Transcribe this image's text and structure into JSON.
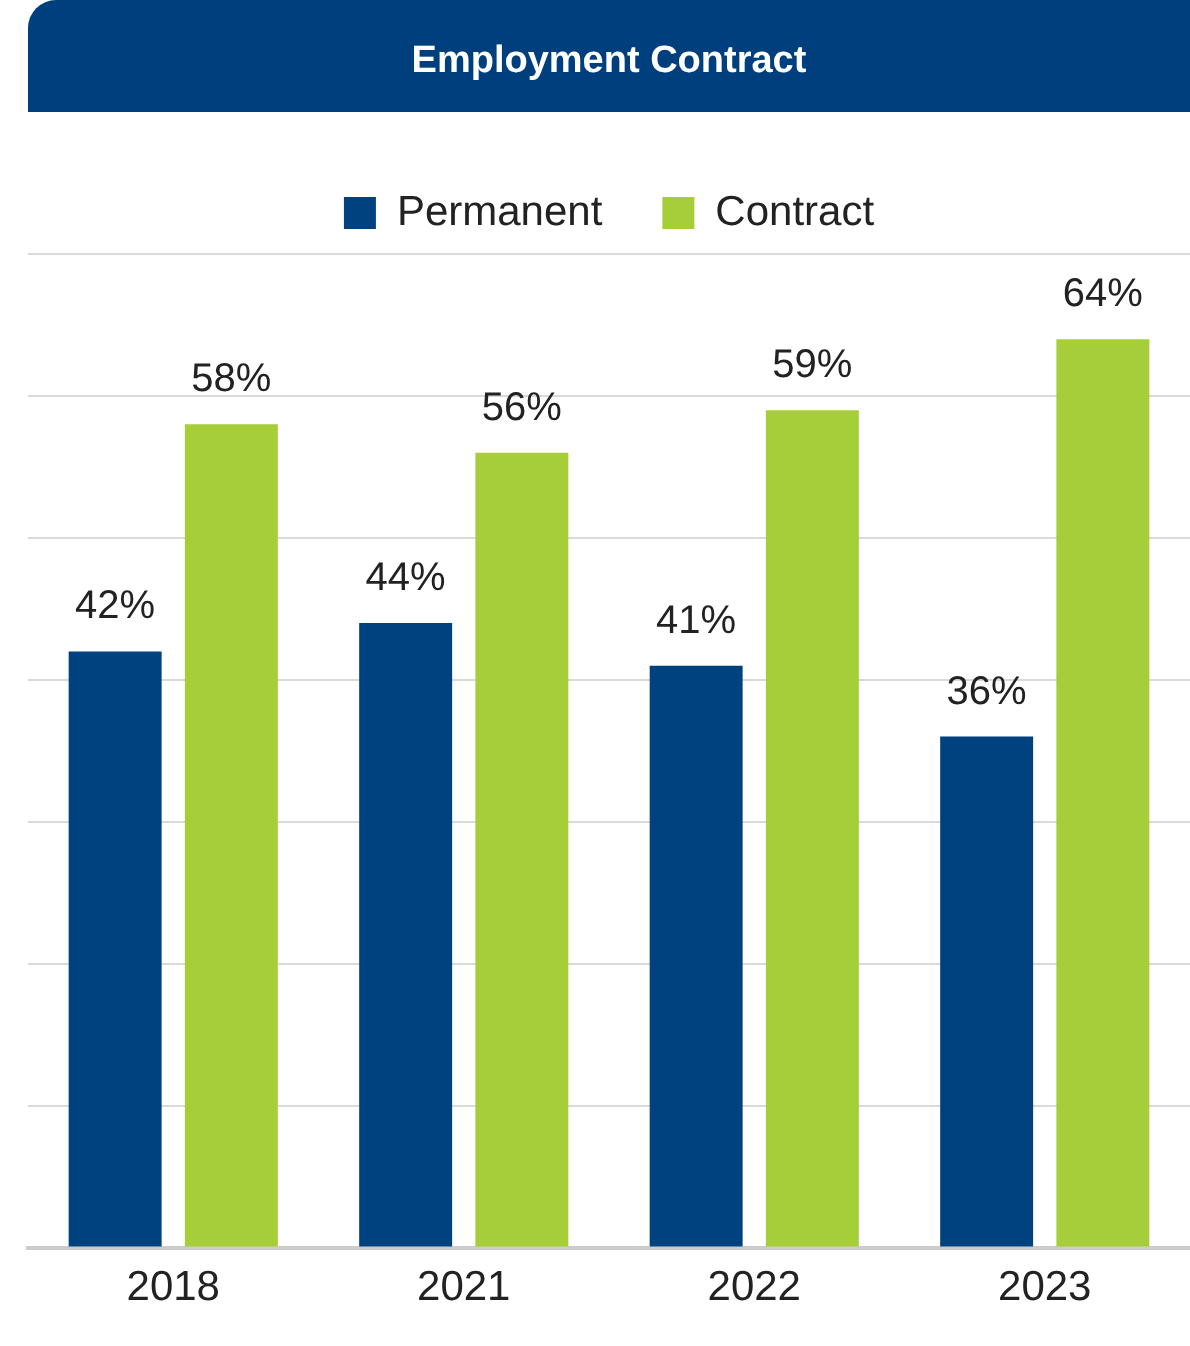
{
  "chart_data": {
    "type": "bar",
    "title": "Employment Contract",
    "categories": [
      "2018",
      "2021",
      "2022",
      "2023"
    ],
    "series": [
      {
        "name": "Permanent",
        "color": "#00427f",
        "values": [
          42,
          44,
          41,
          36
        ],
        "value_labels": [
          "42%",
          "44%",
          "41%",
          "36%"
        ]
      },
      {
        "name": "Contract",
        "color": "#a6ce39",
        "values": [
          58,
          56,
          59,
          64
        ],
        "value_labels": [
          "58%",
          "56%",
          "59%",
          "64%"
        ]
      }
    ],
    "grid": "y",
    "legend": "top",
    "tick_labels": "x"
  }
}
